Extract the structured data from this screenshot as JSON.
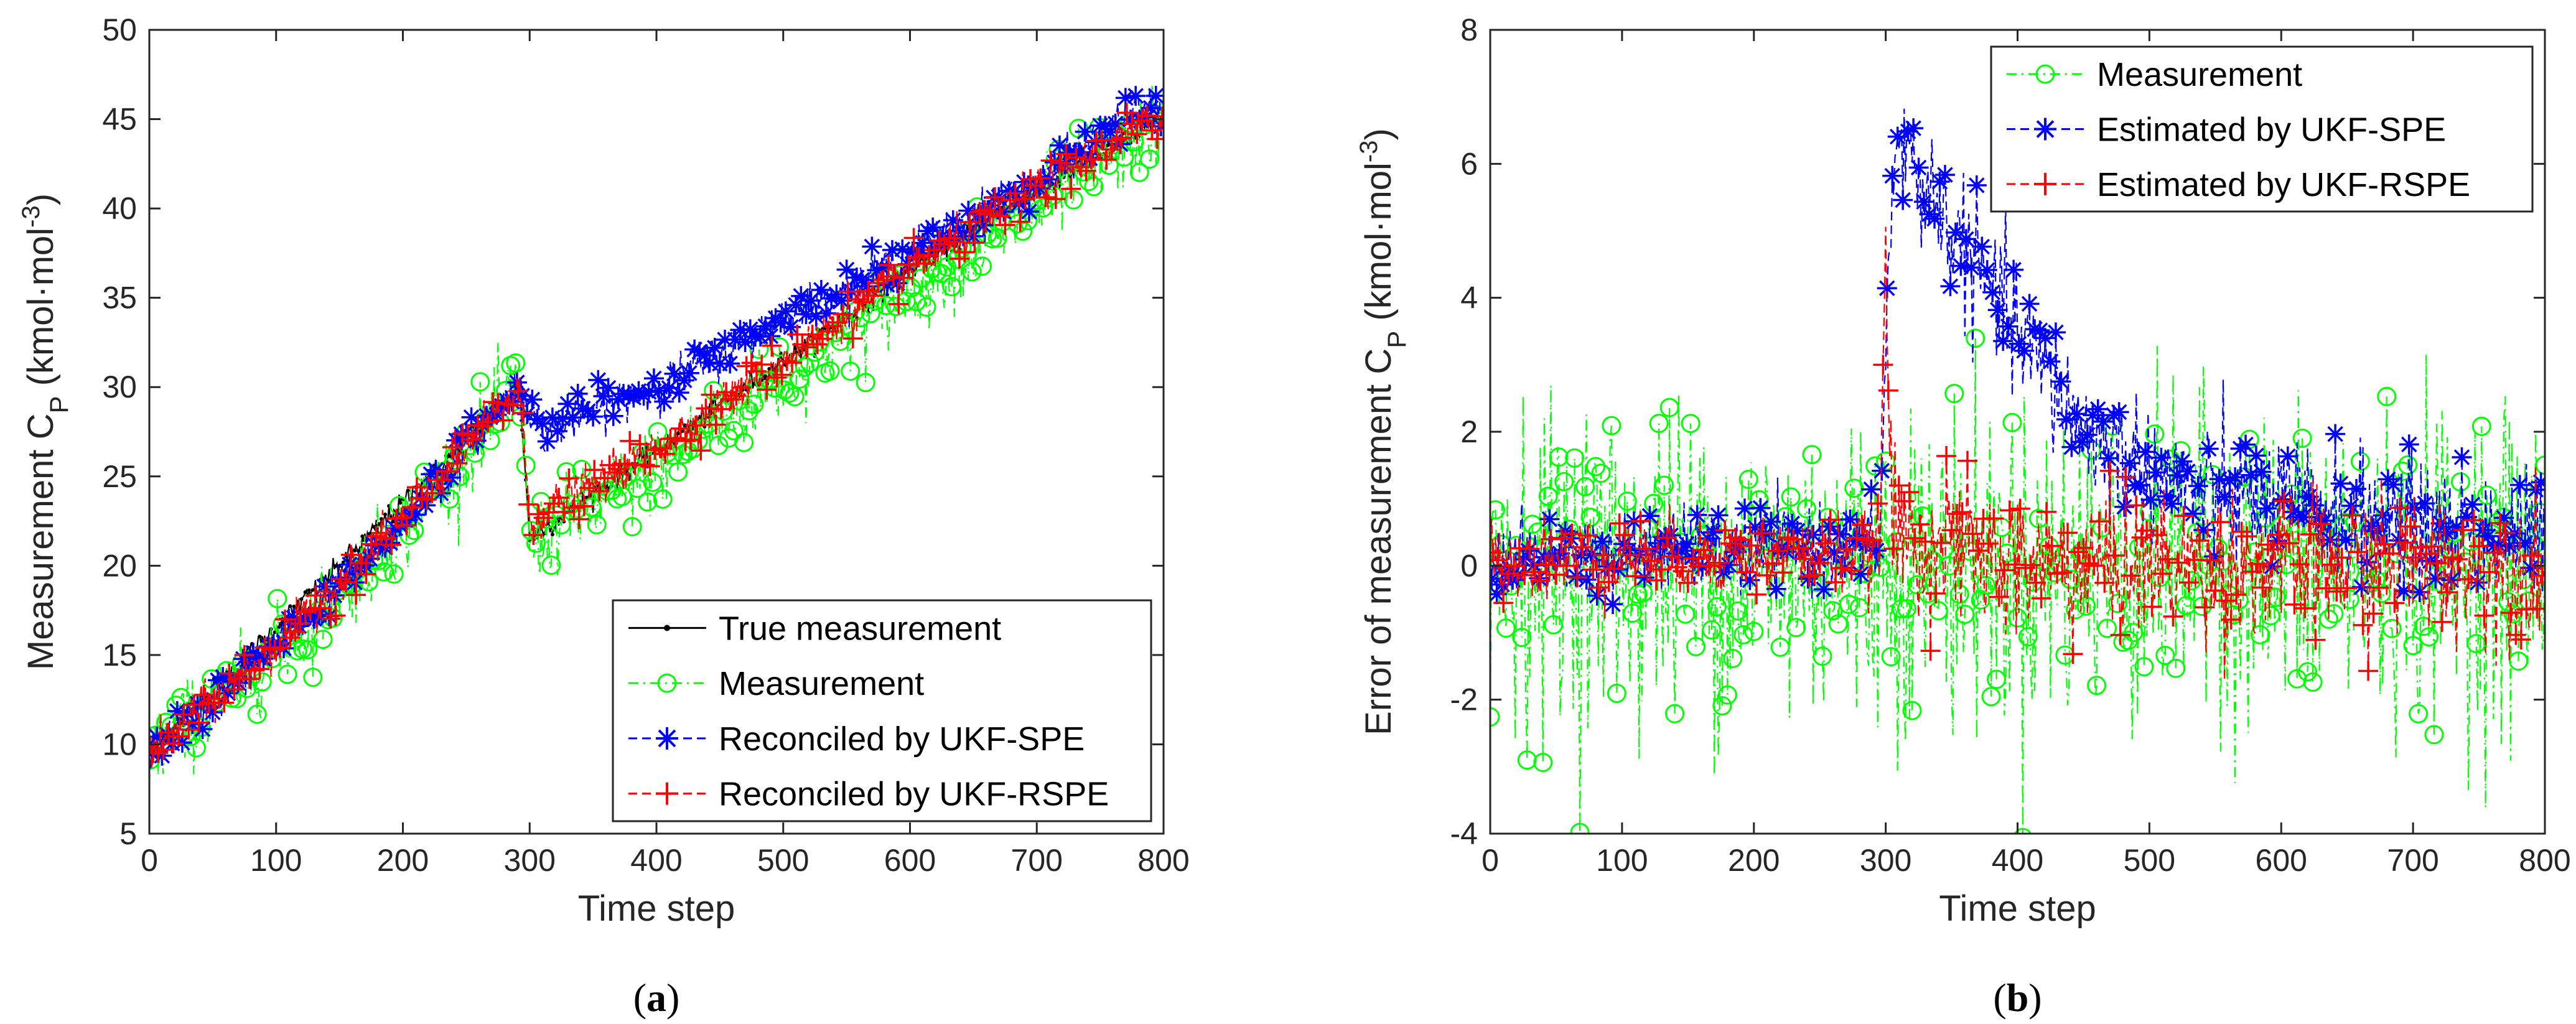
{
  "chart_data": [
    {
      "type": "line",
      "panel_label": "a",
      "title": "",
      "xlabel": "Time step",
      "ylabel": {
        "main": "Measurement C",
        "sub": "P",
        "unit_pre": " (kmol·mol",
        "unit_sup": "-3",
        "unit_post": ")"
      },
      "xlim": [
        0,
        800
      ],
      "ylim": [
        5,
        50
      ],
      "xticks": [
        0,
        100,
        200,
        300,
        400,
        500,
        600,
        700,
        800
      ],
      "yticks": [
        5,
        10,
        15,
        20,
        25,
        30,
        35,
        40,
        45,
        50
      ],
      "grid": false,
      "legend_position": "bottom-right",
      "series": [
        {
          "name": "True measurement",
          "color": "#000000",
          "marker": "dot",
          "linestyle": "solid",
          "points": [
            [
              0,
              9.5
            ],
            [
              292,
              30
            ],
            [
              300,
              21.5
            ],
            [
              400,
              26.5
            ],
            [
              500,
              31.5
            ],
            [
              600,
              36.5
            ],
            [
              700,
              41
            ],
            [
              800,
              45
            ]
          ]
        },
        {
          "name": "Measurement",
          "color": "#00ff00",
          "marker": "circle",
          "linestyle": "dashdot",
          "points": [
            [
              0,
              9.5
            ],
            [
              100,
              15.2
            ],
            [
              200,
              22
            ],
            [
              292,
              30.2
            ],
            [
              300,
              21.2
            ],
            [
              400,
              25.5
            ],
            [
              500,
              30.5
            ],
            [
              600,
              35.5
            ],
            [
              700,
              40
            ],
            [
              780,
              44
            ],
            [
              800,
              44.5
            ]
          ]
        },
        {
          "name": "Reconciled by UKF-SPE",
          "color": "#0000ff",
          "marker": "asterisk",
          "linestyle": "dashed",
          "points": [
            [
              0,
              9.5
            ],
            [
              100,
              15.5
            ],
            [
              200,
              22.5
            ],
            [
              292,
              30.2
            ],
            [
              310,
              27.5
            ],
            [
              360,
              29
            ],
            [
              400,
              30
            ],
            [
              450,
              31.8
            ],
            [
              500,
              34
            ],
            [
              550,
              35.5
            ],
            [
              600,
              37.5
            ],
            [
              700,
              41.5
            ],
            [
              780,
              45.5
            ],
            [
              800,
              45.5
            ]
          ]
        },
        {
          "name": "Reconciled by UKF-RSPE",
          "color": "#ff0000",
          "marker": "plus",
          "linestyle": "dashed",
          "points": [
            [
              0,
              9.5
            ],
            [
              100,
              15.5
            ],
            [
              200,
              22.5
            ],
            [
              292,
              30
            ],
            [
              300,
              22.5
            ],
            [
              400,
              26.5
            ],
            [
              500,
              31.5
            ],
            [
              600,
              36.5
            ],
            [
              700,
              41
            ],
            [
              780,
              44.5
            ],
            [
              800,
              45
            ]
          ]
        }
      ],
      "annotations": []
    },
    {
      "type": "line",
      "panel_label": "b",
      "title": "",
      "xlabel": "Time step",
      "ylabel": {
        "main": "Error of measurement C",
        "sub": "P",
        "unit_pre": " (kmol·mol",
        "unit_sup": "-3",
        "unit_post": ")"
      },
      "xlim": [
        0,
        800
      ],
      "ylim": [
        -4,
        8
      ],
      "xticks": [
        0,
        100,
        200,
        300,
        400,
        500,
        600,
        700,
        800
      ],
      "yticks": [
        -4,
        -2,
        0,
        2,
        4,
        6,
        8
      ],
      "grid": false,
      "legend_position": "top-right",
      "series": [
        {
          "name": "Measurement",
          "color": "#00ff00",
          "marker": "circle",
          "linestyle": "dashdot",
          "points": [
            [
              0,
              0
            ],
            [
              800,
              0
            ]
          ],
          "noise_sd": 1.2
        },
        {
          "name": "Estimated by UKF-SPE",
          "color": "#0000ff",
          "marker": "asterisk",
          "linestyle": "dashed",
          "points": [
            [
              0,
              0.1
            ],
            [
              295,
              0.3
            ],
            [
              305,
              5.8
            ],
            [
              310,
              6.3
            ],
            [
              350,
              5
            ],
            [
              400,
              3.5
            ],
            [
              450,
              2
            ],
            [
              500,
              1.4
            ],
            [
              550,
              1
            ],
            [
              600,
              0.9
            ],
            [
              700,
              0.6
            ],
            [
              800,
              0.4
            ]
          ]
        },
        {
          "name": "Estimated by UKF-RSPE",
          "color": "#ff0000",
          "marker": "plus",
          "linestyle": "dashed",
          "points": [
            [
              0,
              0.1
            ],
            [
              295,
              0.2
            ],
            [
              300,
              4.6
            ],
            [
              305,
              0.5
            ],
            [
              400,
              0
            ],
            [
              800,
              0
            ]
          ]
        }
      ],
      "annotations": []
    }
  ]
}
